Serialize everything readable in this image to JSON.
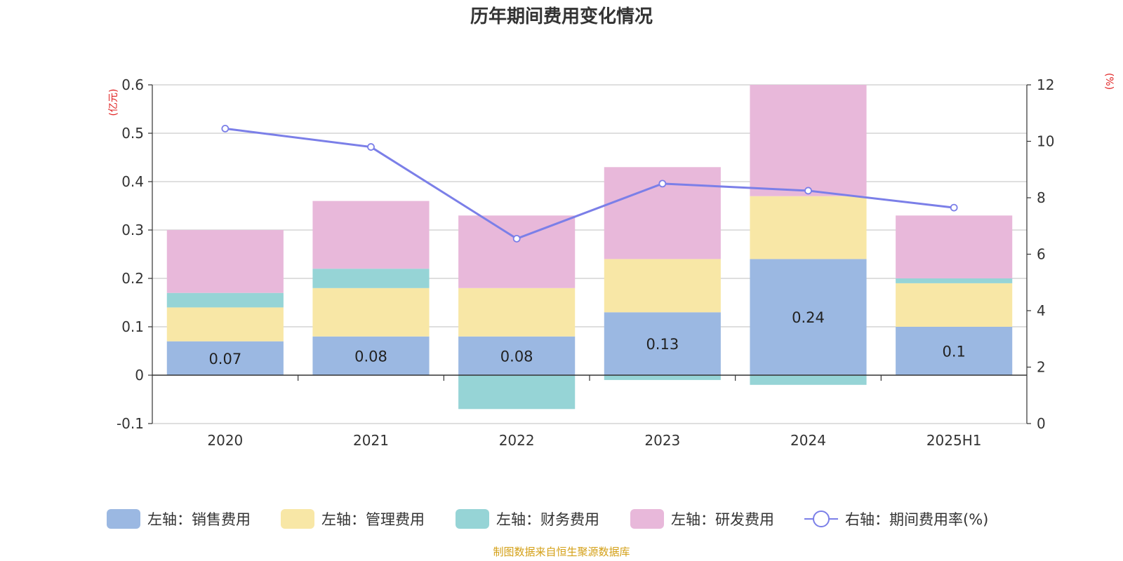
{
  "chart_data": {
    "type": "bar",
    "title": "历年期间费用变化情况",
    "categories": [
      "2020",
      "2021",
      "2022",
      "2023",
      "2024",
      "2025H1"
    ],
    "left_axis": {
      "unit_label": "(亿元)",
      "ylim": [
        -0.1,
        0.6
      ],
      "ticks": [
        "-0.1",
        "0",
        "0.1",
        "0.2",
        "0.3",
        "0.4",
        "0.5",
        "0.6"
      ]
    },
    "right_axis": {
      "unit_label": "(%)",
      "ylim": [
        0,
        12
      ],
      "ticks": [
        "0",
        "2",
        "4",
        "6",
        "8",
        "10",
        "12"
      ]
    },
    "grid": true,
    "legend_position": "bottom",
    "series": [
      {
        "name": "左轴：销售费用",
        "axis": "left",
        "kind": "bar",
        "color": "#9bb8e2",
        "values": [
          0.07,
          0.08,
          0.08,
          0.13,
          0.24,
          0.1
        ],
        "labels": [
          "0.07",
          "0.08",
          "0.08",
          "0.13",
          "0.24",
          "0.1"
        ]
      },
      {
        "name": "左轴：管理费用",
        "axis": "left",
        "kind": "bar",
        "color": "#f8e7a6",
        "values": [
          0.07,
          0.1,
          0.1,
          0.11,
          0.13,
          0.09
        ]
      },
      {
        "name": "左轴：财务费用",
        "axis": "left",
        "kind": "bar",
        "color": "#96d4d6",
        "values": [
          0.03,
          0.04,
          -0.07,
          -0.01,
          -0.02,
          0.01
        ]
      },
      {
        "name": "左轴：研发费用",
        "axis": "left",
        "kind": "bar",
        "color": "#e8b8da",
        "values": [
          0.13,
          0.14,
          0.15,
          0.19,
          0.23,
          0.13
        ]
      },
      {
        "name": "右轴：期间费用率(%)",
        "axis": "right",
        "kind": "line",
        "color": "#7b7fe8",
        "values": [
          10.45,
          9.8,
          6.55,
          8.5,
          8.25,
          7.65
        ]
      }
    ]
  },
  "footer": {
    "source": "制图数据来自恒生聚源数据库"
  }
}
